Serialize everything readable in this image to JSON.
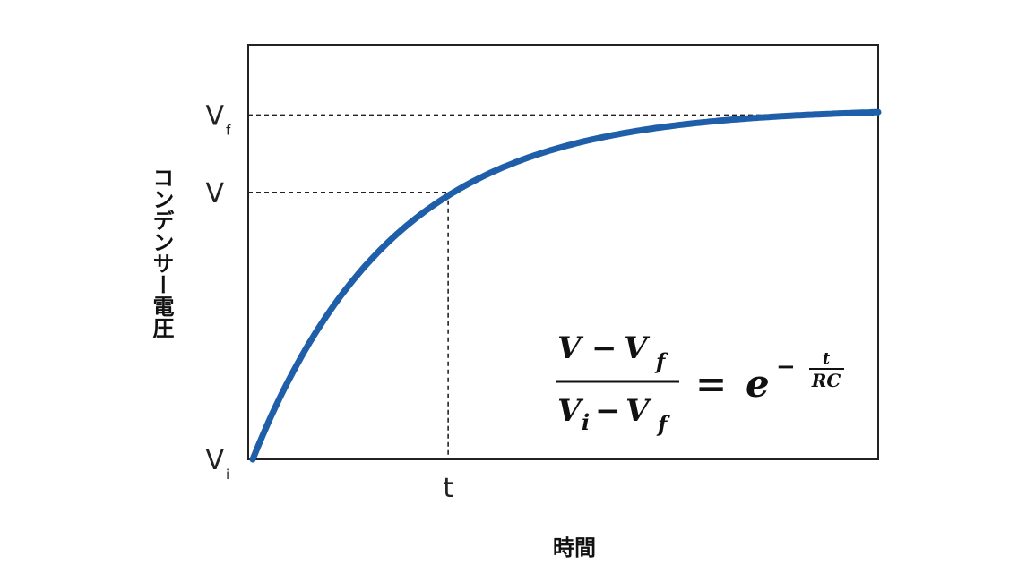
{
  "chart_data": {
    "type": "line",
    "title": "",
    "xlabel": "時間",
    "ylabel": "コンデンサー電圧",
    "x_tick_labels": [
      {
        "label": "t",
        "x": 1
      }
    ],
    "y_tick_labels": [
      {
        "label": "V",
        "sub": "i",
        "y": 0
      },
      {
        "label": "V",
        "sub": "",
        "y": 0.76
      },
      {
        "label": "V",
        "sub": "f",
        "y": 0.98
      }
    ],
    "xlim": [
      0,
      3.2
    ],
    "ylim": [
      0,
      1.18
    ],
    "series": [
      {
        "color": "#1f5ea8",
        "curve": "1 - exp(-x / 0.72)",
        "x": [
          0,
          0.2,
          0.4,
          0.6,
          0.8,
          1.0,
          1.2,
          1.4,
          1.6,
          1.8,
          2.0,
          2.4,
          2.8,
          3.2
        ],
        "values": [
          0,
          0.24,
          0.43,
          0.57,
          0.67,
          0.75,
          0.81,
          0.85,
          0.89,
          0.92,
          0.94,
          0.96,
          0.98,
          0.99
        ]
      }
    ],
    "guide_point": {
      "x": 1,
      "y": 0.76
    },
    "final_level": 0.98,
    "grid": false,
    "formula": {
      "num_a": "V",
      "num_minus": "−",
      "num_b": "V",
      "num_b_sub": "f",
      "den_a": "V",
      "den_a_sub": "i",
      "den_minus": "−",
      "den_b": "V",
      "den_b_sub": "f",
      "equals": "=",
      "base": "e",
      "exp_sign": "−",
      "exp_num": "t",
      "exp_den": "RC"
    }
  }
}
